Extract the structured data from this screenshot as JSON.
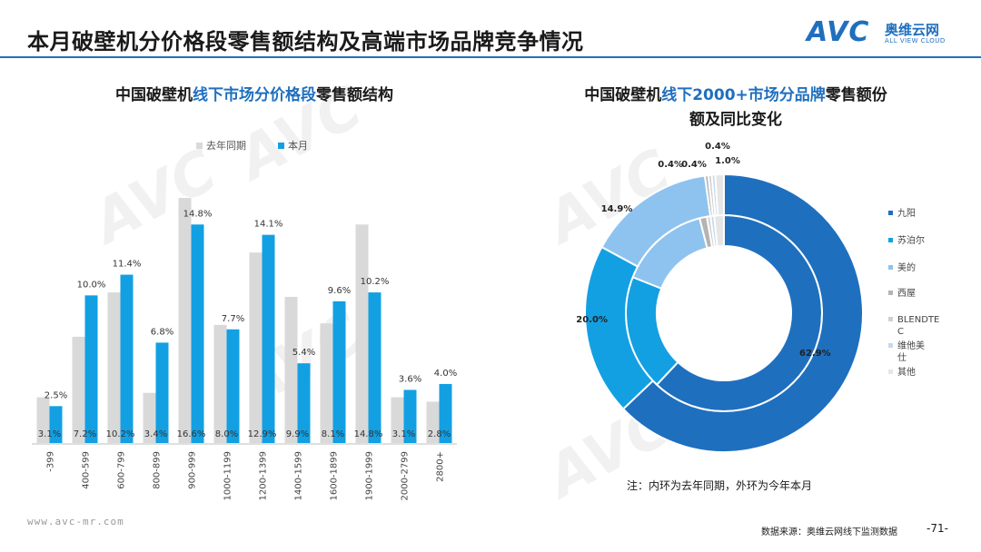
{
  "header": {
    "title": "本月破壁机分价格段零售额结构及高端市场品牌竞争情况",
    "logo_avc": "AVC",
    "logo_cn": "奥维云网",
    "logo_en": "ALL VIEW CLOUD"
  },
  "left_chart": {
    "title_parts": [
      "中国破壁机",
      "线下市场分价格段",
      "零售额结构"
    ]
  },
  "right_chart": {
    "title_parts": [
      "中国破壁机",
      "线下2000+市场分品牌",
      "零售额份",
      "额及同比变化"
    ]
  },
  "note": "注：内环为去年同期，外环为今年本月",
  "footer": {
    "site": "www.avc-mr.com",
    "source": "数据来源：奥维云网线下监测数据",
    "page": "-71-"
  },
  "watermarks": [
    "AVC",
    "AVC",
    "AVC",
    "AVC",
    "AVC"
  ],
  "colors": {
    "prior": "#d9d9d9",
    "current": "#12a0e3",
    "accent": "#1f6fbf",
    "donut": [
      "#1f6fbf",
      "#12a0e3",
      "#8ec3f0",
      "#b4b4b4",
      "#d0d0d0",
      "#c7d9ee",
      "#e6e6e6"
    ]
  },
  "chart_data": [
    {
      "type": "bar",
      "categories": [
        "-399",
        "400-599",
        "600-799",
        "800-899",
        "900-999",
        "1000-1199",
        "1200-1399",
        "1400-1599",
        "1600-1899",
        "1900-1999",
        "2000-2799",
        "2800+"
      ],
      "series": [
        {
          "name": "去年同期",
          "values": [
            3.1,
            7.2,
            10.2,
            3.4,
            16.6,
            8.0,
            12.9,
            9.9,
            8.1,
            14.8,
            3.1,
            2.8
          ],
          "labels": [
            "3.1%",
            "7.2%",
            "10.2%",
            "3.4%",
            "16.6%",
            "8.0%",
            "12.9%",
            "9.9%",
            "8.1%",
            "14.8%",
            "3.1%",
            "2.8%"
          ]
        },
        {
          "name": "本月",
          "values": [
            2.5,
            10.0,
            11.4,
            6.8,
            14.8,
            7.7,
            14.1,
            5.4,
            9.6,
            10.2,
            3.6,
            4.0
          ],
          "labels": [
            "2.5%",
            "10.0%",
            "11.4%",
            "6.8%",
            "14.8%",
            "7.7%",
            "14.1%",
            "5.4%",
            "9.6%",
            "10.2%",
            "3.6%",
            "4.0%"
          ]
        }
      ],
      "legend_position": "top",
      "ylim": [
        0,
        16.6
      ]
    },
    {
      "type": "pie",
      "subtype": "donut",
      "categories": [
        "九阳",
        "苏泊尔",
        "美的",
        "西屋",
        "BLENDTEC",
        "维他美仕",
        "其他"
      ],
      "outer_ring": {
        "values": [
          62.9,
          20.0,
          14.9,
          0.4,
          0.4,
          0.4,
          1.0
        ],
        "labels": [
          "62.9%",
          "20.0%",
          "14.9%",
          "0.4%",
          "0.4%",
          "0.4%",
          "1.0%"
        ]
      },
      "inner_ring": {
        "values": [
          62.0,
          19.0,
          15.0,
          1.2,
          0.6,
          0.6,
          1.6
        ]
      },
      "legend_position": "right"
    }
  ]
}
